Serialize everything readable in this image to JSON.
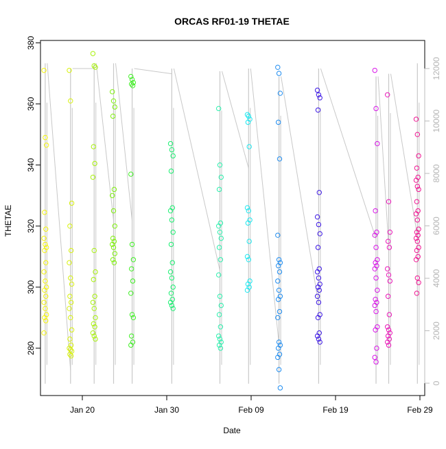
{
  "chart_data": {
    "type": "scatter",
    "title": "ORCAS RF01-19 THETAE",
    "xlabel": "Date",
    "ylabel": "THETAE",
    "x_ticks": [
      "Jan 20",
      "Jan 30",
      "Feb 09",
      "Feb 19",
      "Feb 29"
    ],
    "y_ticks": [
      "280",
      "300",
      "320",
      "340",
      "360",
      "380"
    ],
    "y2_ticks": [
      "0",
      "2000",
      "4000",
      "6000",
      "8000",
      "10000",
      "12000"
    ],
    "xlim_days": [
      14.2,
      51.9
    ],
    "ylim": [
      264.5,
      380.8
    ],
    "y2lim": [
      -150,
      12950
    ],
    "grid": false,
    "legend": "none",
    "altitude_color": "#c8c8c8",
    "flights": [
      {
        "day": 15.6,
        "color": "#f5f50a",
        "values": [
          371,
          349,
          346.5,
          324.5,
          319,
          316,
          314,
          313,
          312,
          308,
          305,
          302,
          300,
          299,
          297,
          295,
          293,
          291,
          290,
          289,
          285
        ]
      },
      {
        "day": 18.6,
        "color": "#d8f20a",
        "values": [
          371,
          361,
          327.5,
          320,
          312,
          308,
          303,
          301,
          297,
          295,
          293,
          290,
          286,
          283,
          281,
          280,
          279.5,
          279,
          278,
          277.5
        ]
      },
      {
        "day": 21.4,
        "color": "#a8f20a",
        "values": [
          376.5,
          372.5,
          372,
          346,
          340.5,
          336,
          312,
          305,
          302.5,
          297,
          295,
          293,
          290,
          288,
          287,
          285,
          284,
          283
        ]
      },
      {
        "day": 23.7,
        "color": "#7ef20a",
        "values": [
          364,
          361,
          359,
          356,
          332,
          330,
          325,
          320,
          316,
          315,
          314,
          313,
          311,
          309,
          308
        ]
      },
      {
        "day": 25.9,
        "color": "#3ef022",
        "values": [
          369,
          368,
          367,
          366.5,
          366,
          337,
          314,
          309,
          306,
          302,
          298,
          291,
          290,
          284,
          282,
          281
        ]
      },
      {
        "day": 30.6,
        "color": "#18f070",
        "values": [
          347,
          345,
          343,
          338,
          326,
          325,
          322,
          318,
          314,
          308,
          305,
          303,
          300,
          298,
          296,
          295,
          294,
          293
        ]
      },
      {
        "day": 36.3,
        "color": "#2af0ad",
        "values": [
          358.5,
          340,
          336,
          332,
          321,
          320,
          318,
          316,
          313,
          309,
          304,
          297,
          294,
          291,
          287,
          284,
          283,
          282,
          281,
          280
        ]
      },
      {
        "day": 39.7,
        "color": "#1ee8f0",
        "values": [
          356.5,
          356,
          355,
          354,
          346,
          326,
          325,
          322,
          321,
          315,
          310,
          309,
          302,
          301,
          300,
          299
        ]
      },
      {
        "day": 43.3,
        "color": "#1e8cf0",
        "values": [
          372,
          370,
          363.5,
          354,
          342,
          317,
          309,
          308,
          307,
          305,
          302,
          299,
          297,
          296,
          292,
          290,
          282,
          281,
          280,
          278,
          277,
          273,
          267
        ]
      },
      {
        "day": 48.0,
        "color": "#3a14e6",
        "values": [
          364.5,
          363,
          362,
          358,
          331,
          323,
          320.5,
          317.5,
          313,
          306,
          305,
          303,
          301,
          300,
          299,
          297,
          295,
          291,
          290,
          285,
          284,
          283,
          282
        ]
      },
      {
        "day": 54.8,
        "color": "#d814e8",
        "values": [
          371,
          358.5,
          347,
          325,
          318,
          317,
          313,
          309,
          308,
          307,
          306,
          303,
          299,
          296,
          295,
          294,
          292,
          287,
          286,
          280,
          277,
          275.5
        ]
      },
      {
        "day": 56.3,
        "color": "#ea14b8",
        "values": [
          363,
          328,
          318,
          315,
          313,
          306,
          304,
          302,
          297,
          291,
          287,
          286,
          285,
          284,
          283,
          282,
          281
        ]
      },
      {
        "day": 59.7,
        "color": "#f01492",
        "values": [
          355,
          350,
          343,
          339,
          336,
          335,
          333,
          332,
          328,
          325,
          324,
          322,
          319,
          318,
          317,
          316,
          315,
          313,
          312,
          310,
          309,
          303,
          301.5,
          298
        ]
      }
    ]
  }
}
